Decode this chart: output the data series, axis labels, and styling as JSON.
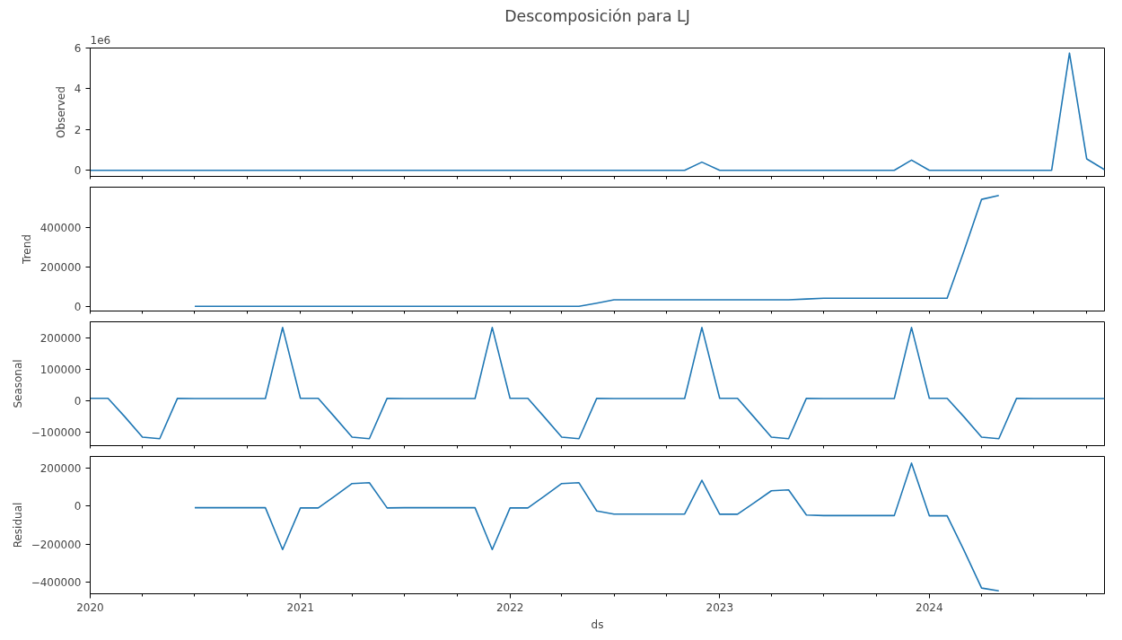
{
  "chart_data": [
    {
      "type": "line",
      "title": "Descomposición para LJ",
      "ylabel": "Observed",
      "annotations": [
        "1e6"
      ],
      "grid": false,
      "tick_labels": "y",
      "marker": "none",
      "line_style": "solid",
      "x": [
        "2020-01",
        "2020-02",
        "2020-03",
        "2020-04",
        "2020-05",
        "2020-06",
        "2020-07",
        "2020-08",
        "2020-09",
        "2020-10",
        "2020-11",
        "2020-12",
        "2021-01",
        "2021-02",
        "2021-03",
        "2021-04",
        "2021-05",
        "2021-06",
        "2021-07",
        "2021-08",
        "2021-09",
        "2021-10",
        "2021-11",
        "2021-12",
        "2022-01",
        "2022-02",
        "2022-03",
        "2022-04",
        "2022-05",
        "2022-06",
        "2022-07",
        "2022-08",
        "2022-09",
        "2022-10",
        "2022-11",
        "2022-12",
        "2023-01",
        "2023-02",
        "2023-03",
        "2023-04",
        "2023-05",
        "2023-06",
        "2023-07",
        "2023-08",
        "2023-09",
        "2023-10",
        "2023-11",
        "2023-12",
        "2024-01",
        "2024-02",
        "2024-03",
        "2024-04",
        "2024-05",
        "2024-06",
        "2024-07",
        "2024-08",
        "2024-09",
        "2024-10",
        "2024-11"
      ],
      "series": [
        {
          "color": "#1f77b4",
          "values": [
            0,
            0,
            0,
            0,
            0,
            0,
            0,
            0,
            0,
            0,
            0,
            0,
            0,
            0,
            0,
            0,
            0,
            0,
            0,
            0,
            0,
            0,
            0,
            0,
            0,
            0,
            0,
            0,
            0,
            0,
            0,
            0,
            0,
            0,
            0,
            0.4,
            0,
            0,
            0,
            0,
            0,
            0,
            0,
            0,
            0,
            0,
            0,
            0.5,
            0,
            0,
            0,
            0,
            0,
            0,
            0,
            0,
            5.75,
            0.56,
            0.03
          ]
        }
      ],
      "xlim": [
        "2020-01",
        "2024-11"
      ],
      "xticks": [
        {
          "value": "2020",
          "label": null
        },
        {
          "value": "2020-04",
          "label": null
        },
        {
          "value": "2020-07",
          "label": null
        },
        {
          "value": "2020-10",
          "label": null
        },
        {
          "value": "2021",
          "label": null
        },
        {
          "value": "2021-04",
          "label": null
        },
        {
          "value": "2021-07",
          "label": null
        },
        {
          "value": "2021-10",
          "label": null
        },
        {
          "value": "2022",
          "label": null
        },
        {
          "value": "2022-04",
          "label": null
        },
        {
          "value": "2022-07",
          "label": null
        },
        {
          "value": "2022-10",
          "label": null
        },
        {
          "value": "2023",
          "label": null
        },
        {
          "value": "2023-04",
          "label": null
        },
        {
          "value": "2023-07",
          "label": null
        },
        {
          "value": "2023-10",
          "label": null
        },
        {
          "value": "2024",
          "label": null
        },
        {
          "value": "2024-04",
          "label": null
        },
        {
          "value": "2024-07",
          "label": null
        },
        {
          "value": "2024-10",
          "label": null
        }
      ],
      "ylim": [
        -0.3,
        6
      ],
      "yticks": [
        0,
        2,
        4,
        6
      ]
    },
    {
      "type": "line",
      "ylabel": "Trend",
      "grid": false,
      "tick_labels": "y",
      "marker": "none",
      "line_style": "solid",
      "x": [
        "2020-07",
        "2020-08",
        "2020-09",
        "2020-10",
        "2020-11",
        "2020-12",
        "2021-01",
        "2021-02",
        "2021-03",
        "2021-04",
        "2021-05",
        "2021-06",
        "2021-07",
        "2021-08",
        "2021-09",
        "2021-10",
        "2021-11",
        "2021-12",
        "2022-01",
        "2022-02",
        "2022-03",
        "2022-04",
        "2022-05",
        "2022-06",
        "2022-07",
        "2022-08",
        "2022-09",
        "2022-10",
        "2022-11",
        "2022-12",
        "2023-01",
        "2023-02",
        "2023-03",
        "2023-04",
        "2023-05",
        "2023-06",
        "2023-07",
        "2023-08",
        "2023-09",
        "2023-10",
        "2023-11",
        "2023-12",
        "2024-01",
        "2024-02",
        "2024-03",
        "2024-04",
        "2024-05"
      ],
      "series": [
        {
          "color": "#1f77b4",
          "values": [
            2000,
            2000,
            2000,
            2000,
            2000,
            2000,
            2000,
            2000,
            2000,
            2000,
            2000,
            2000,
            2000,
            2000,
            2000,
            2000,
            2000,
            2000,
            2000,
            2000,
            2000,
            2000,
            2000,
            18000,
            35000,
            35000,
            35000,
            35000,
            35000,
            35000,
            35000,
            35000,
            35000,
            35000,
            35000,
            39000,
            43000,
            43000,
            43000,
            43000,
            43000,
            43000,
            43000,
            43000,
            280000,
            545000,
            565000
          ]
        }
      ],
      "xlim": [
        "2020-01",
        "2024-11"
      ],
      "xticks": [
        {
          "value": "2020",
          "label": null
        },
        {
          "value": "2020-04",
          "label": null
        },
        {
          "value": "2020-07",
          "label": null
        },
        {
          "value": "2020-10",
          "label": null
        },
        {
          "value": "2021",
          "label": null
        },
        {
          "value": "2021-04",
          "label": null
        },
        {
          "value": "2021-07",
          "label": null
        },
        {
          "value": "2021-10",
          "label": null
        },
        {
          "value": "2022",
          "label": null
        },
        {
          "value": "2022-04",
          "label": null
        },
        {
          "value": "2022-07",
          "label": null
        },
        {
          "value": "2022-10",
          "label": null
        },
        {
          "value": "2023",
          "label": null
        },
        {
          "value": "2023-04",
          "label": null
        },
        {
          "value": "2023-07",
          "label": null
        },
        {
          "value": "2023-10",
          "label": null
        },
        {
          "value": "2024",
          "label": null
        },
        {
          "value": "2024-04",
          "label": null
        },
        {
          "value": "2024-07",
          "label": null
        },
        {
          "value": "2024-10",
          "label": null
        }
      ],
      "ylim": [
        -22000,
        607000
      ],
      "yticks": [
        0,
        200000,
        400000
      ]
    },
    {
      "type": "line",
      "ylabel": "Seasonal",
      "grid": false,
      "tick_labels": "y",
      "marker": "none",
      "line_style": "solid",
      "x": [
        "2020-01",
        "2020-02",
        "2020-03",
        "2020-04",
        "2020-05",
        "2020-06",
        "2020-07",
        "2020-08",
        "2020-09",
        "2020-10",
        "2020-11",
        "2020-12",
        "2021-01",
        "2021-02",
        "2021-03",
        "2021-04",
        "2021-05",
        "2021-06",
        "2021-07",
        "2021-08",
        "2021-09",
        "2021-10",
        "2021-11",
        "2021-12",
        "2022-01",
        "2022-02",
        "2022-03",
        "2022-04",
        "2022-05",
        "2022-06",
        "2022-07",
        "2022-08",
        "2022-09",
        "2022-10",
        "2022-11",
        "2022-12",
        "2023-01",
        "2023-02",
        "2023-03",
        "2023-04",
        "2023-05",
        "2023-06",
        "2023-07",
        "2023-08",
        "2023-09",
        "2023-10",
        "2023-11",
        "2023-12",
        "2024-01",
        "2024-02",
        "2024-03",
        "2024-04",
        "2024-05",
        "2024-06",
        "2024-07",
        "2024-08",
        "2024-09",
        "2024-10",
        "2024-11"
      ],
      "series": [
        {
          "color": "#1f77b4",
          "values": [
            8000,
            8000,
            -50000,
            -115000,
            -120000,
            8000,
            7000,
            7000,
            7000,
            7000,
            7000,
            232000,
            8000,
            8000,
            -50000,
            -115000,
            -120000,
            8000,
            7000,
            7000,
            7000,
            7000,
            7000,
            232000,
            8000,
            8000,
            -50000,
            -115000,
            -120000,
            8000,
            7000,
            7000,
            7000,
            7000,
            7000,
            232000,
            8000,
            8000,
            -50000,
            -115000,
            -120000,
            8000,
            7000,
            7000,
            7000,
            7000,
            7000,
            232000,
            8000,
            8000,
            -50000,
            -115000,
            -120000,
            8000,
            7000,
            7000,
            7000,
            7000,
            7000
          ]
        }
      ],
      "xlim": [
        "2020-01",
        "2024-11"
      ],
      "xticks": [
        {
          "value": "2020",
          "label": null
        },
        {
          "value": "2020-04",
          "label": null
        },
        {
          "value": "2020-07",
          "label": null
        },
        {
          "value": "2020-10",
          "label": null
        },
        {
          "value": "2021",
          "label": null
        },
        {
          "value": "2021-04",
          "label": null
        },
        {
          "value": "2021-07",
          "label": null
        },
        {
          "value": "2021-10",
          "label": null
        },
        {
          "value": "2022",
          "label": null
        },
        {
          "value": "2022-04",
          "label": null
        },
        {
          "value": "2022-07",
          "label": null
        },
        {
          "value": "2022-10",
          "label": null
        },
        {
          "value": "2023",
          "label": null
        },
        {
          "value": "2023-04",
          "label": null
        },
        {
          "value": "2023-07",
          "label": null
        },
        {
          "value": "2023-10",
          "label": null
        },
        {
          "value": "2024",
          "label": null
        },
        {
          "value": "2024-04",
          "label": null
        },
        {
          "value": "2024-07",
          "label": null
        },
        {
          "value": "2024-10",
          "label": null
        }
      ],
      "ylim": [
        -142000,
        250000
      ],
      "yticks": [
        {
          "value": -100000,
          "label": "−100000"
        },
        0,
        100000,
        200000
      ]
    },
    {
      "type": "line",
      "ylabel": "Residual",
      "xlabel": "ds",
      "grid": false,
      "marker": "none",
      "line_style": "solid",
      "x": [
        "2020-07",
        "2020-08",
        "2020-09",
        "2020-10",
        "2020-11",
        "2020-12",
        "2021-01",
        "2021-02",
        "2021-03",
        "2021-04",
        "2021-05",
        "2021-06",
        "2021-07",
        "2021-08",
        "2021-09",
        "2021-10",
        "2021-11",
        "2021-12",
        "2022-01",
        "2022-02",
        "2022-03",
        "2022-04",
        "2022-05",
        "2022-06",
        "2022-07",
        "2022-08",
        "2022-09",
        "2022-10",
        "2022-11",
        "2022-12",
        "2023-01",
        "2023-02",
        "2023-03",
        "2023-04",
        "2023-05",
        "2023-06",
        "2023-07",
        "2023-08",
        "2023-09",
        "2023-10",
        "2023-11",
        "2023-12",
        "2024-01",
        "2024-02",
        "2024-03",
        "2024-04",
        "2024-05"
      ],
      "series": [
        {
          "color": "#1f77b4",
          "values": [
            -9000,
            -9000,
            -9000,
            -9000,
            -9000,
            -228000,
            -10000,
            -10000,
            50000,
            118000,
            122000,
            -10000,
            -9000,
            -9000,
            -9000,
            -9000,
            -9000,
            -228000,
            -10000,
            -10000,
            50000,
            118000,
            122000,
            -26000,
            -42000,
            -42000,
            -42000,
            -42000,
            -42000,
            135000,
            -43000,
            -43000,
            15000,
            80000,
            85000,
            -47000,
            -50000,
            -50000,
            -50000,
            -50000,
            -50000,
            225000,
            -51000,
            -51000,
            -230000,
            -430000,
            -445000
          ]
        }
      ],
      "xlim": [
        "2020-01",
        "2024-11"
      ],
      "xticks": [
        {
          "value": "2020",
          "label": "2020"
        },
        {
          "value": "2020-04",
          "label": null
        },
        {
          "value": "2020-07",
          "label": null
        },
        {
          "value": "2020-10",
          "label": null
        },
        {
          "value": "2021",
          "label": "2021"
        },
        {
          "value": "2021-04",
          "label": null
        },
        {
          "value": "2021-07",
          "label": null
        },
        {
          "value": "2021-10",
          "label": null
        },
        {
          "value": "2022",
          "label": "2022"
        },
        {
          "value": "2022-04",
          "label": null
        },
        {
          "value": "2022-07",
          "label": null
        },
        {
          "value": "2022-10",
          "label": null
        },
        {
          "value": "2023",
          "label": "2023"
        },
        {
          "value": "2023-04",
          "label": null
        },
        {
          "value": "2023-07",
          "label": null
        },
        {
          "value": "2023-10",
          "label": null
        },
        {
          "value": "2024",
          "label": "2024"
        },
        {
          "value": "2024-04",
          "label": null
        },
        {
          "value": "2024-07",
          "label": null
        },
        {
          "value": "2024-10",
          "label": null
        }
      ],
      "ylim": [
        -460000,
        260000
      ],
      "yticks": [
        {
          "value": -400000,
          "label": "−400000"
        },
        {
          "value": -200000,
          "label": "−200000"
        },
        0,
        200000
      ]
    }
  ]
}
